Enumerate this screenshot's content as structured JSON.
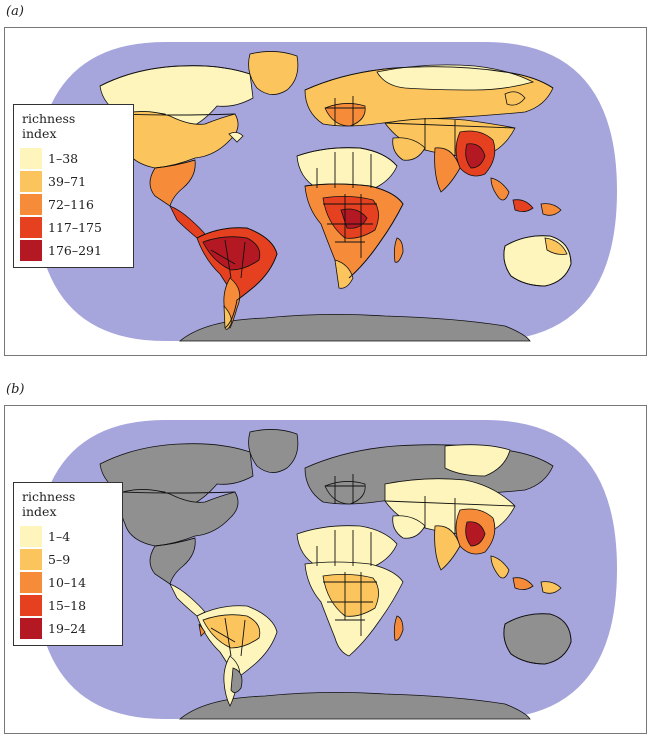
{
  "colors": {
    "ocean": "#a6a5dc",
    "land_no_data": "#909090",
    "borders": "#111111",
    "antarctica": "#8e8e8e"
  },
  "panel_a": {
    "label": "(a)",
    "legend_title_line1": "richness",
    "legend_title_line2": "index",
    "classes": [
      {
        "label": "1–38",
        "color": "#fdf5bc"
      },
      {
        "label": "39–71",
        "color": "#fbc45c"
      },
      {
        "label": "72–116",
        "color": "#f68c3a"
      },
      {
        "label": "117–175",
        "color": "#e5401f"
      },
      {
        "label": "176–291",
        "color": "#b41822"
      }
    ]
  },
  "panel_b": {
    "label": "(b)",
    "legend_title_line1": "richness",
    "legend_title_line2": "index",
    "classes": [
      {
        "label": "1–4",
        "color": "#fdf5bc"
      },
      {
        "label": "5–9",
        "color": "#fbc45c"
      },
      {
        "label": "10–14",
        "color": "#f68c3a"
      },
      {
        "label": "15–18",
        "color": "#e5401f"
      },
      {
        "label": "19–24",
        "color": "#b41822"
      }
    ]
  }
}
